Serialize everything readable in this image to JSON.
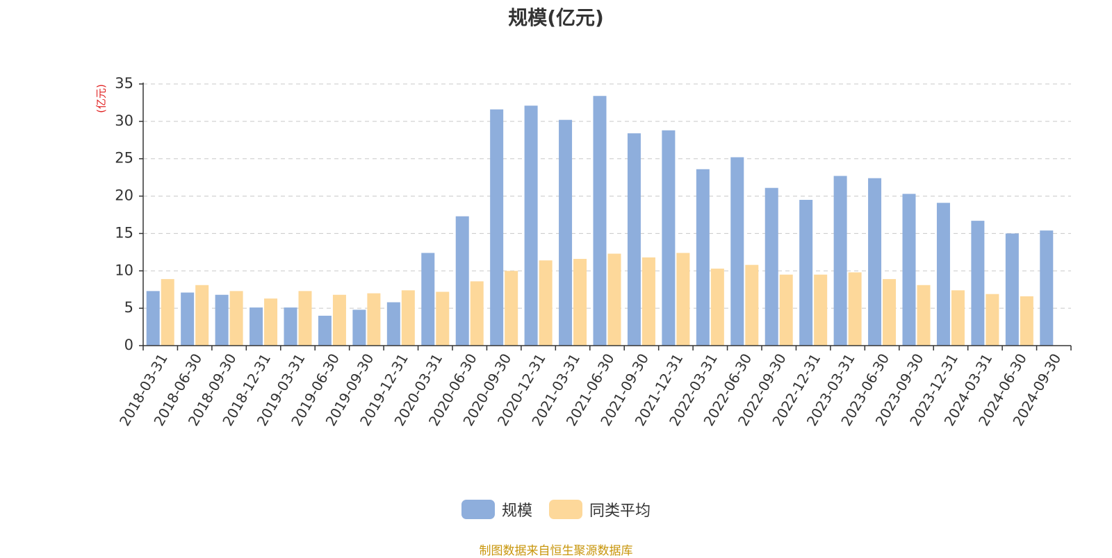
{
  "chart_data": {
    "type": "bar",
    "title": "规模(亿元)",
    "ylabel": "(亿元)",
    "xlabel": "",
    "ylim": [
      0,
      35
    ],
    "yticks": [
      0,
      5,
      10,
      15,
      20,
      25,
      30,
      35
    ],
    "grid": true,
    "legend_position": "bottom-center",
    "categories": [
      "2018-03-31",
      "2018-06-30",
      "2018-09-30",
      "2018-12-31",
      "2019-03-31",
      "2019-06-30",
      "2019-09-30",
      "2019-12-31",
      "2020-03-31",
      "2020-06-30",
      "2020-09-30",
      "2020-12-31",
      "2021-03-31",
      "2021-06-30",
      "2021-09-30",
      "2021-12-31",
      "2022-03-31",
      "2022-06-30",
      "2022-09-30",
      "2022-12-31",
      "2023-03-31",
      "2023-06-30",
      "2023-09-30",
      "2023-12-31",
      "2024-03-31",
      "2024-06-30",
      "2024-09-30"
    ],
    "series": [
      {
        "name": "规模",
        "color": "#8eaedc",
        "values": [
          7.3,
          7.1,
          6.8,
          5.1,
          5.1,
          4.0,
          4.8,
          5.8,
          12.4,
          17.3,
          31.6,
          32.1,
          30.2,
          33.4,
          28.4,
          28.8,
          23.6,
          25.2,
          21.1,
          19.5,
          22.7,
          22.4,
          20.3,
          19.1,
          16.7,
          15.0,
          15.4
        ]
      },
      {
        "name": "同类平均",
        "color": "#fdd89a",
        "values": [
          8.9,
          8.1,
          7.3,
          6.3,
          7.3,
          6.8,
          7.0,
          7.4,
          7.2,
          8.6,
          10.0,
          11.4,
          11.6,
          12.3,
          11.8,
          12.4,
          10.3,
          10.8,
          9.5,
          9.5,
          9.8,
          8.9,
          8.1,
          7.4,
          6.9,
          6.6,
          null
        ]
      }
    ],
    "source_note": "制图数据来自恒生聚源数据库"
  }
}
